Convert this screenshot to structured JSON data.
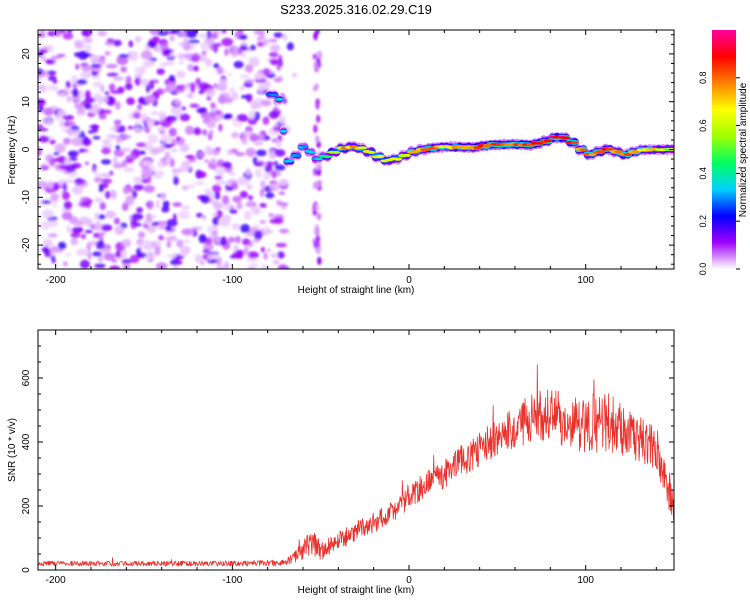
{
  "title": "S233.2025.316.02.29.C19",
  "chart_data": [
    {
      "type": "heatmap",
      "title": "S233.2025.316.02.29.C19",
      "xlabel": "Height of straight line (km)",
      "ylabel": "Frequency (Hz)",
      "xlim": [
        -210,
        150
      ],
      "ylim": [
        -25,
        25
      ],
      "xticks": [
        -200,
        -100,
        0,
        100
      ],
      "yticks": [
        -20,
        -10,
        0,
        10,
        20
      ],
      "colorbar": {
        "label": "Normalized spectral amplitude",
        "range": [
          0,
          1
        ],
        "ticks": [
          0.0,
          0.2,
          0.4,
          0.6,
          0.8
        ],
        "colors": [
          "#ffffff",
          "#a000ff",
          "#0000ff",
          "#00d0ff",
          "#00ff60",
          "#a0ff00",
          "#ffff00",
          "#ff8000",
          "#ff0000",
          "#ff00a0"
        ]
      },
      "noise_region": {
        "x_range": [
          -210,
          -70
        ],
        "y_range": [
          -25,
          25
        ],
        "amplitude_range": [
          0.02,
          0.15
        ]
      },
      "isolated_streak": {
        "x": -52,
        "y_range": [
          -25,
          25
        ]
      },
      "ridge": {
        "x": [
          -80,
          -75,
          -72,
          -70,
          -66,
          -62,
          -58,
          -54,
          -50,
          -45,
          -40,
          -35,
          -30,
          -25,
          -20,
          -15,
          -10,
          -5,
          0,
          5,
          10,
          15,
          20,
          25,
          30,
          35,
          40,
          45,
          50,
          55,
          60,
          65,
          70,
          75,
          80,
          85,
          90,
          95,
          100,
          105,
          110,
          115,
          120,
          125,
          130,
          135,
          140,
          145,
          150
        ],
        "frequency": [
          12,
          11,
          10,
          -2.5,
          -2.5,
          0,
          1,
          -2,
          -2,
          -1,
          0,
          0.5,
          0.5,
          0,
          -1,
          -2,
          -2.5,
          -1.5,
          -1,
          0,
          0,
          0.5,
          0.5,
          0.5,
          0.5,
          0.5,
          0.5,
          1,
          1,
          1,
          1,
          1,
          1,
          1.5,
          2,
          3,
          2,
          1,
          -1,
          -1,
          0,
          0,
          -1,
          -1,
          0,
          0,
          0,
          0,
          0
        ],
        "amplitude": [
          0.3,
          0.35,
          0.35,
          0.3,
          0.35,
          0.35,
          0.3,
          0.3,
          0.3,
          0.5,
          0.7,
          0.75,
          0.7,
          0.6,
          0.7,
          0.65,
          0.55,
          0.6,
          0.65,
          0.75,
          0.8,
          0.75,
          0.7,
          0.75,
          0.8,
          0.8,
          0.85,
          0.85,
          0.85,
          0.8,
          0.8,
          0.85,
          0.9,
          0.85,
          0.9,
          0.95,
          0.9,
          0.8,
          0.75,
          0.8,
          0.85,
          0.8,
          0.75,
          0.8,
          0.75,
          0.7,
          0.65,
          0.6,
          0.55
        ]
      }
    },
    {
      "type": "line",
      "xlabel": "Height of straight line (km)",
      "ylabel": "SNR (10 * v/v)",
      "xlim": [
        -210,
        150
      ],
      "ylim": [
        0,
        750
      ],
      "xticks": [
        -200,
        -100,
        0,
        100
      ],
      "yticks": [
        0,
        200,
        400,
        600
      ],
      "color": "#e8312a",
      "series": [
        {
          "name": "SNR",
          "x": [
            -210,
            -150,
            -100,
            -70,
            -62,
            -55,
            -50,
            -40,
            -30,
            -20,
            -10,
            0,
            10,
            20,
            30,
            40,
            50,
            60,
            70,
            80,
            90,
            100,
            110,
            120,
            130,
            140,
            150
          ],
          "y": [
            20,
            20,
            20,
            22,
            50,
            90,
            60,
            90,
            120,
            150,
            180,
            230,
            270,
            300,
            340,
            380,
            420,
            450,
            480,
            490,
            460,
            450,
            470,
            440,
            410,
            380,
            200
          ],
          "noise_amplitude": [
            8,
            8,
            8,
            10,
            25,
            40,
            30,
            30,
            30,
            35,
            35,
            40,
            40,
            45,
            50,
            55,
            60,
            70,
            80,
            85,
            80,
            85,
            110,
            80,
            70,
            70,
            60
          ]
        }
      ]
    }
  ]
}
